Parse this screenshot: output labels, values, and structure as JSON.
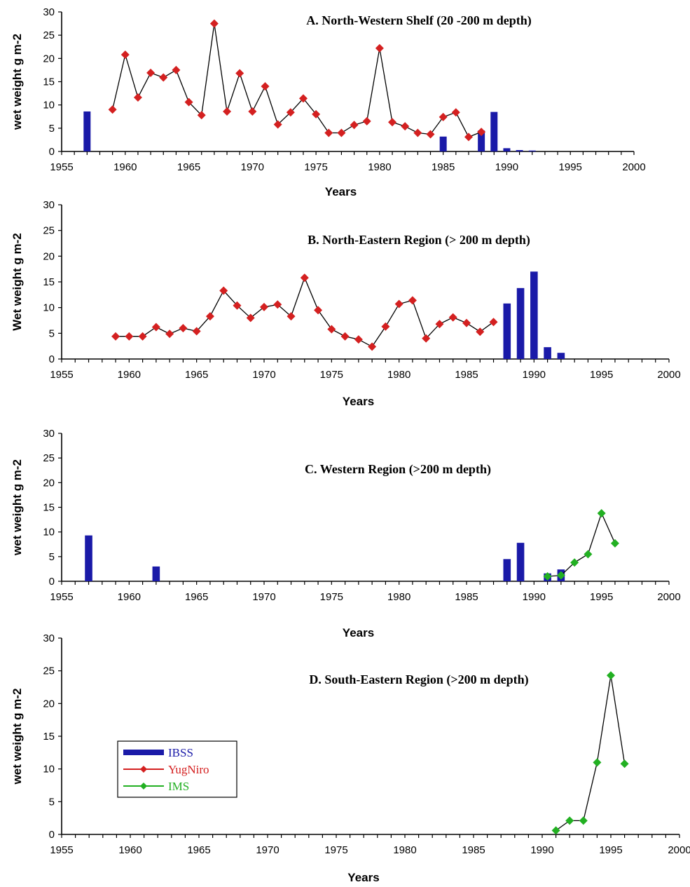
{
  "colors": {
    "IBSS": "#1a1aa8",
    "YugNiro": "#d42020",
    "IMS": "#22b022",
    "line": "#000000"
  },
  "legend": {
    "items": [
      {
        "name": "IBSS",
        "kind": "bar"
      },
      {
        "name": "YugNiro",
        "kind": "line"
      },
      {
        "name": "IMS",
        "kind": "line"
      }
    ],
    "placement": "inside panel D, left-center"
  },
  "chart_data": [
    {
      "type": "bar+line",
      "title": "A. North-Western Shelf  (20 -200 m depth)",
      "xlabel": "Years",
      "ylabel": "wet weight g m-2",
      "xlim": [
        1955,
        2000
      ],
      "ylim": [
        0,
        30
      ],
      "xticks": [
        "1955",
        "1960",
        "1965",
        "1970",
        "1975",
        "1980",
        "1985",
        "1990",
        "1995",
        "2000"
      ],
      "yticks": [
        "0",
        "5",
        "10",
        "15",
        "20",
        "25",
        "30"
      ],
      "bars": {
        "name": "IBSS",
        "x": [
          1957,
          1985,
          1988,
          1989,
          1990,
          1991,
          1992
        ],
        "values": [
          8.6,
          3.2,
          4.5,
          8.5,
          0.7,
          0.3,
          0.2
        ]
      },
      "lines": [
        {
          "name": "YugNiro",
          "x": [
            1959,
            1960,
            1961,
            1962,
            1963,
            1964,
            1965,
            1966,
            1967,
            1968,
            1969,
            1970,
            1971,
            1972,
            1973,
            1974,
            1975,
            1976,
            1977,
            1978,
            1979,
            1980,
            1981,
            1982,
            1983,
            1984,
            1985,
            1986,
            1987,
            1988
          ],
          "values": [
            9.0,
            20.8,
            11.6,
            16.9,
            15.9,
            17.5,
            10.6,
            7.8,
            27.5,
            8.6,
            16.8,
            8.6,
            14.0,
            5.8,
            8.4,
            11.4,
            8.0,
            4.0,
            4.0,
            5.7,
            6.5,
            22.2,
            6.3,
            5.4,
            4.0,
            3.7,
            7.4,
            8.4,
            3.1,
            4.2
          ]
        }
      ]
    },
    {
      "type": "bar+line",
      "title": "B. North-Eastern Region (> 200 m depth)",
      "xlabel": "Years",
      "ylabel": "Wet weight g m-2",
      "xlim": [
        1955,
        2000
      ],
      "ylim": [
        0,
        30
      ],
      "xticks": [
        "1955",
        "1960",
        "1965",
        "1970",
        "1975",
        "1980",
        "1985",
        "1990",
        "1995",
        "2000"
      ],
      "yticks": [
        "0",
        "5",
        "10",
        "15",
        "20",
        "25",
        "30"
      ],
      "bars": {
        "name": "IBSS",
        "x": [
          1988,
          1989,
          1990,
          1991,
          1992
        ],
        "values": [
          10.8,
          13.8,
          17.0,
          2.3,
          1.2
        ]
      },
      "lines": [
        {
          "name": "YugNiro",
          "x": [
            1959,
            1960,
            1961,
            1962,
            1963,
            1964,
            1965,
            1966,
            1967,
            1968,
            1969,
            1970,
            1971,
            1972,
            1973,
            1974,
            1975,
            1976,
            1977,
            1978,
            1979,
            1980,
            1981,
            1982,
            1983,
            1984,
            1985,
            1986,
            1987
          ],
          "values": [
            4.4,
            4.4,
            4.4,
            6.2,
            4.9,
            6.0,
            5.4,
            8.3,
            13.3,
            10.4,
            8.0,
            10.1,
            10.6,
            8.3,
            15.8,
            9.5,
            5.8,
            4.4,
            3.8,
            2.4,
            6.3,
            10.7,
            11.4,
            4.0,
            6.8,
            8.1,
            7.0,
            5.3,
            7.2
          ]
        }
      ]
    },
    {
      "type": "bar+line",
      "title": "C. Western Region (>200 m depth)",
      "xlabel": "Years",
      "ylabel": "wet weight g m-2",
      "xlim": [
        1955,
        2000
      ],
      "ylim": [
        0,
        30
      ],
      "xticks": [
        "1955",
        "1960",
        "1965",
        "1970",
        "1975",
        "1980",
        "1985",
        "1990",
        "1995",
        "2000"
      ],
      "yticks": [
        "0",
        "5",
        "10",
        "15",
        "20",
        "25",
        "30"
      ],
      "bars": {
        "name": "IBSS",
        "x": [
          1957,
          1962,
          1988,
          1989,
          1991,
          1992
        ],
        "values": [
          9.3,
          3.0,
          4.5,
          7.8,
          1.6,
          2.4
        ]
      },
      "lines": [
        {
          "name": "IMS",
          "x": [
            1991,
            1992,
            1993,
            1994,
            1995,
            1996
          ],
          "values": [
            1.0,
            1.2,
            3.8,
            5.5,
            13.8,
            7.7
          ]
        }
      ]
    },
    {
      "type": "line",
      "title": "D. South-Eastern Region (>200 m depth)",
      "xlabel": "Years",
      "ylabel": "wet weight g m-2",
      "xlim": [
        1955,
        2000
      ],
      "ylim": [
        0,
        30
      ],
      "xticks": [
        "1955",
        "1960",
        "1965",
        "1970",
        "1975",
        "1980",
        "1985",
        "1990",
        "1995",
        "2000"
      ],
      "yticks": [
        "0",
        "5",
        "10",
        "15",
        "20",
        "25",
        "30"
      ],
      "bars": {
        "name": "IBSS",
        "x": [],
        "values": []
      },
      "lines": [
        {
          "name": "IMS",
          "x": [
            1991,
            1992,
            1993,
            1994,
            1995,
            1996
          ],
          "values": [
            0.6,
            2.1,
            2.1,
            11.0,
            24.3,
            10.8
          ]
        }
      ]
    }
  ]
}
